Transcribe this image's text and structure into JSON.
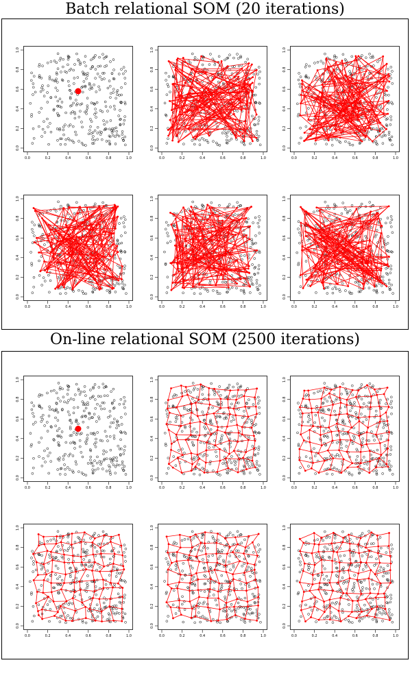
{
  "figure": {
    "batch_title": "Batch relational SOM (20 iterations)",
    "online_title": "On-line relational SOM (2500 iterations)"
  },
  "colors": {
    "points": "#000000",
    "som": "#ff0000",
    "frame": "#000000"
  },
  "chart_data": [
    {
      "type": "scatter",
      "group": "batch",
      "panel": 1,
      "xlim": [
        0,
        1
      ],
      "ylim": [
        0,
        1
      ],
      "xticks": [
        "0.0",
        "0.2",
        "0.4",
        "0.6",
        "0.8",
        "1.0"
      ],
      "yticks": [
        "0.0",
        "0.2",
        "0.4",
        "0.6",
        "0.8",
        "1.0"
      ],
      "som_state": "collapsed",
      "som_center": [
        0.5,
        0.58
      ],
      "grid": false
    },
    {
      "type": "scatter",
      "group": "batch",
      "panel": 2,
      "xlim": [
        0,
        1
      ],
      "ylim": [
        0,
        1
      ],
      "xticks": [
        "0.0",
        "0.2",
        "0.4",
        "0.6",
        "0.8",
        "1.0"
      ],
      "yticks": [
        "0.0",
        "0.2",
        "0.4",
        "0.6",
        "0.8",
        "1.0"
      ],
      "som_state": "tangled",
      "grid": false
    },
    {
      "type": "scatter",
      "group": "batch",
      "panel": 3,
      "xlim": [
        0,
        1
      ],
      "ylim": [
        0,
        1
      ],
      "xticks": [
        "0.0",
        "0.2",
        "0.4",
        "0.6",
        "0.8",
        "1.0"
      ],
      "yticks": [
        "0.0",
        "0.2",
        "0.4",
        "0.6",
        "0.8",
        "1.0"
      ],
      "som_state": "tangled",
      "grid": false
    },
    {
      "type": "scatter",
      "group": "batch",
      "panel": 4,
      "xlim": [
        0,
        1
      ],
      "ylim": [
        0,
        1
      ],
      "xticks": [
        "0.0",
        "0.2",
        "0.4",
        "0.6",
        "0.8",
        "1.0"
      ],
      "yticks": [
        "0.0",
        "0.2",
        "0.4",
        "0.6",
        "0.8",
        "1.0"
      ],
      "som_state": "tangled",
      "grid": false
    },
    {
      "type": "scatter",
      "group": "batch",
      "panel": 5,
      "xlim": [
        0,
        1
      ],
      "ylim": [
        0,
        1
      ],
      "xticks": [
        "0.0",
        "0.2",
        "0.4",
        "0.6",
        "0.8",
        "1.0"
      ],
      "yticks": [
        "0.0",
        "0.2",
        "0.4",
        "0.6",
        "0.8",
        "1.0"
      ],
      "som_state": "tangled",
      "grid": false
    },
    {
      "type": "scatter",
      "group": "batch",
      "panel": 6,
      "xlim": [
        0,
        1
      ],
      "ylim": [
        0,
        1
      ],
      "xticks": [
        "0.0",
        "0.2",
        "0.4",
        "0.6",
        "0.8",
        "1.0"
      ],
      "yticks": [
        "0.0",
        "0.2",
        "0.4",
        "0.6",
        "0.8",
        "1.0"
      ],
      "som_state": "tangled",
      "grid": false
    },
    {
      "type": "scatter",
      "group": "online",
      "panel": 1,
      "xlim": [
        0,
        1
      ],
      "ylim": [
        0,
        1
      ],
      "xticks": [
        "0.0",
        "0.2",
        "0.4",
        "0.6",
        "0.8",
        "1.0"
      ],
      "yticks": [
        "0.0",
        "0.2",
        "0.4",
        "0.6",
        "0.8",
        "1.0"
      ],
      "som_state": "collapsed",
      "som_center": [
        0.5,
        0.5
      ],
      "grid": false
    },
    {
      "type": "scatter",
      "group": "online",
      "panel": 2,
      "xlim": [
        0,
        1
      ],
      "ylim": [
        0,
        1
      ],
      "xticks": [
        "0.0",
        "0.2",
        "0.4",
        "0.6",
        "0.8",
        "1.0"
      ],
      "yticks": [
        "0.0",
        "0.2",
        "0.4",
        "0.6",
        "0.8",
        "1.0"
      ],
      "som_state": "unfolded",
      "grid": false
    },
    {
      "type": "scatter",
      "group": "online",
      "panel": 3,
      "xlim": [
        0,
        1
      ],
      "ylim": [
        0,
        1
      ],
      "xticks": [
        "0.0",
        "0.2",
        "0.4",
        "0.6",
        "0.8",
        "1.0"
      ],
      "yticks": [
        "0.0",
        "0.2",
        "0.4",
        "0.6",
        "0.8",
        "1.0"
      ],
      "som_state": "unfolded",
      "grid": false
    },
    {
      "type": "scatter",
      "group": "online",
      "panel": 4,
      "xlim": [
        0,
        1
      ],
      "ylim": [
        0,
        1
      ],
      "xticks": [
        "0.0",
        "0.2",
        "0.4",
        "0.6",
        "0.8",
        "1.0"
      ],
      "yticks": [
        "0.0",
        "0.2",
        "0.4",
        "0.6",
        "0.8",
        "1.0"
      ],
      "som_state": "unfolded",
      "grid": false
    },
    {
      "type": "scatter",
      "group": "online",
      "panel": 5,
      "xlim": [
        0,
        1
      ],
      "ylim": [
        0,
        1
      ],
      "xticks": [
        "0.0",
        "0.2",
        "0.4",
        "0.6",
        "0.8",
        "1.0"
      ],
      "yticks": [
        "0.0",
        "0.2",
        "0.4",
        "0.6",
        "0.8",
        "1.0"
      ],
      "som_state": "unfolded",
      "grid": false
    },
    {
      "type": "scatter",
      "group": "online",
      "panel": 6,
      "xlim": [
        0,
        1
      ],
      "ylim": [
        0,
        1
      ],
      "xticks": [
        "0.0",
        "0.2",
        "0.4",
        "0.6",
        "0.8",
        "1.0"
      ],
      "yticks": [
        "0.0",
        "0.2",
        "0.4",
        "0.6",
        "0.8",
        "1.0"
      ],
      "som_state": "unfolded",
      "grid": false
    }
  ]
}
